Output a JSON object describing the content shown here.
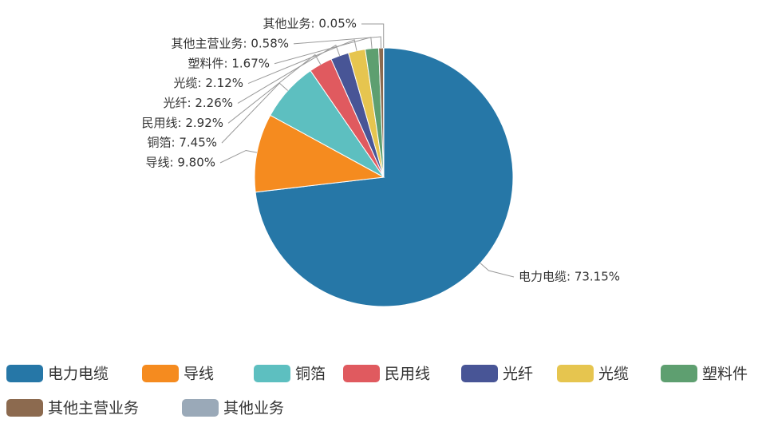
{
  "chart_data": {
    "type": "pie",
    "categories": [
      "电力电缆",
      "导线",
      "铜箔",
      "民用线",
      "光纤",
      "光缆",
      "塑料件",
      "其他主营业务",
      "其他业务"
    ],
    "values": [
      73.15,
      9.8,
      7.45,
      2.92,
      2.26,
      2.12,
      1.67,
      0.58,
      0.05
    ],
    "value_labels": [
      "电力电缆: 73.15%",
      "导线: 9.80%",
      "铜箔: 7.45%",
      "民用线: 2.92%",
      "光纤: 2.26%",
      "光缆: 2.12%",
      "塑料件: 1.67%",
      "其他主营业务: 0.58%",
      "其他业务: 0.05%"
    ],
    "colors": [
      "#2677a7",
      "#f58b1f",
      "#5dbfc0",
      "#e05a5f",
      "#485596",
      "#e6c54f",
      "#5e9f70",
      "#8c6a4f",
      "#9aa9b8"
    ],
    "legend": "bottom"
  }
}
